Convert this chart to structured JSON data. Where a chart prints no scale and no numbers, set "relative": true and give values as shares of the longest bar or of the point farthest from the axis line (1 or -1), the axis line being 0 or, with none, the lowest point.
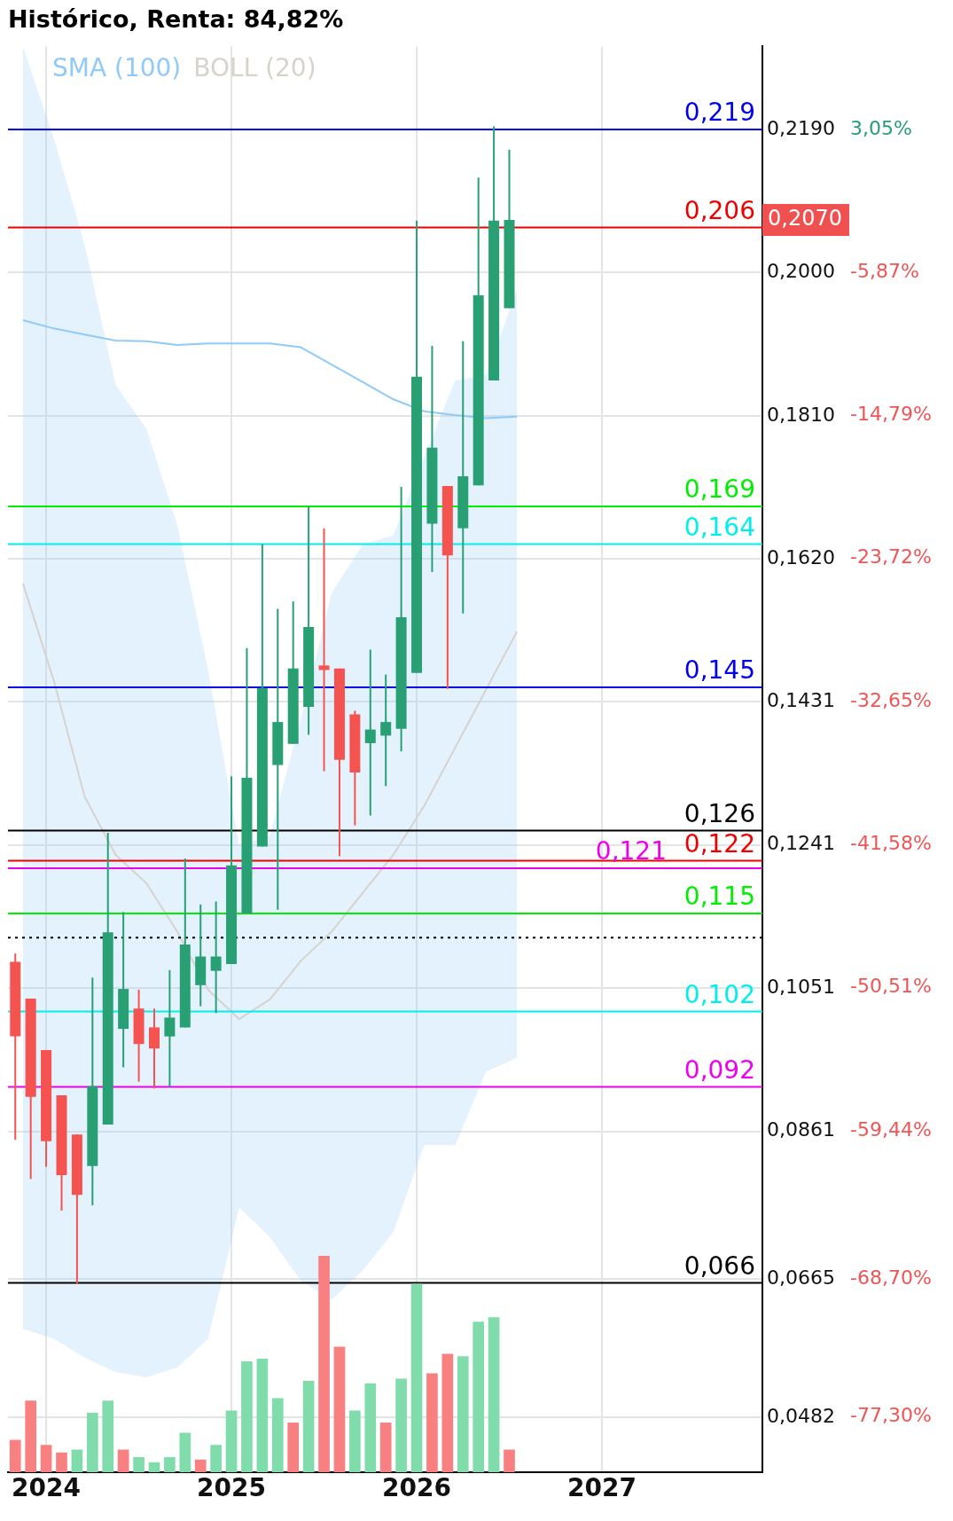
{
  "chart_data": [
    {
      "type": "candlestick",
      "title": "Histórico, Renta: 84,82%",
      "x": [
        "2023-11",
        "2023-12",
        "2024-01",
        "2024-02",
        "2024-03",
        "2024-04",
        "2024-05",
        "2024-06",
        "2024-07",
        "2024-08",
        "2024-09",
        "2024-10",
        "2024-11",
        "2024-12",
        "2025-01",
        "2025-02",
        "2025-03",
        "2025-04",
        "2025-05",
        "2025-06",
        "2025-07",
        "2025-08",
        "2025-09",
        "2025-10",
        "2025-11",
        "2025-12",
        "2026-01",
        "2026-02",
        "2026-03",
        "2026-04",
        "2026-05",
        "2026-06",
        "2026-07"
      ],
      "ohlc": [
        [
          0.1086,
          0.1097,
          0.085,
          0.0987
        ],
        [
          0.1037,
          0.1037,
          0.0798,
          0.0907
        ],
        [
          0.0969,
          0.0969,
          0.0814,
          0.0848
        ],
        [
          0.0909,
          0.0909,
          0.0756,
          0.0803
        ],
        [
          0.0857,
          0.0857,
          0.0659,
          0.0777
        ],
        [
          0.0815,
          0.1065,
          0.0763,
          0.0921
        ],
        [
          0.087,
          0.1257,
          0.087,
          0.1125
        ],
        [
          0.0997,
          0.1152,
          0.0946,
          0.105
        ],
        [
          0.1024,
          0.1049,
          0.0927,
          0.0977
        ],
        [
          0.0999,
          0.1024,
          0.0918,
          0.0971
        ],
        [
          0.0987,
          0.1075,
          0.092,
          0.1012
        ],
        [
          0.0999,
          0.1223,
          0.0999,
          0.1109
        ],
        [
          0.1055,
          0.1162,
          0.1027,
          0.1093
        ],
        [
          0.1074,
          0.1166,
          0.1018,
          0.1093
        ],
        [
          0.1083,
          0.1332,
          0.1083,
          0.1214
        ],
        [
          0.115,
          0.1502,
          0.115,
          0.133
        ],
        [
          0.1239,
          0.164,
          0.1239,
          0.1449
        ],
        [
          0.1347,
          0.1554,
          0.1155,
          0.1404
        ],
        [
          0.1375,
          0.1564,
          0.1375,
          0.1475
        ],
        [
          0.1424,
          0.169,
          0.1387,
          0.153
        ],
        [
          0.1479,
          0.1661,
          0.1339,
          0.1473
        ],
        [
          0.1475,
          0.1475,
          0.1226,
          0.1354
        ],
        [
          0.1414,
          0.1419,
          0.1267,
          0.1337
        ],
        [
          0.1376,
          0.15,
          0.128,
          0.1394
        ],
        [
          0.1386,
          0.1467,
          0.1319,
          0.1404
        ],
        [
          0.1395,
          0.1716,
          0.1365,
          0.1543
        ],
        [
          0.1469,
          0.2069,
          0.1469,
          0.1862
        ],
        [
          0.1667,
          0.1903,
          0.1603,
          0.1768
        ],
        [
          0.1717,
          0.1717,
          0.1448,
          0.1625
        ],
        [
          0.1661,
          0.1909,
          0.1548,
          0.173
        ],
        [
          0.1718,
          0.2126,
          0.1718,
          0.197
        ],
        [
          0.1857,
          0.2194,
          0.1857,
          0.2069
        ],
        [
          0.1953,
          0.2163,
          0.1953,
          0.207
        ]
      ],
      "colors": [
        "#f5534f",
        "#f5534f",
        "#f5534f",
        "#f5534f",
        "#f5534f",
        "#28a074",
        "#28a074",
        "#28a074",
        "#f5534f",
        "#f5534f",
        "#28a074",
        "#28a074",
        "#28a074",
        "#28a074",
        "#28a074",
        "#28a074",
        "#28a074",
        "#28a074",
        "#28a074",
        "#28a074",
        "#f5534f",
        "#f5534f",
        "#f5534f",
        "#28a074",
        "#28a074",
        "#28a074",
        "#28a074",
        "#28a074",
        "#f5534f",
        "#28a074",
        "#28a074",
        "#28a074",
        "#28a074"
      ],
      "series": [
        {
          "name": "SMA (100)",
          "type": "line",
          "color": "#90caf9",
          "x": [
            "2023-11-16",
            "2024-01-16",
            "2024-03-16",
            "2024-05-16",
            "2024-07-16",
            "2024-09-16",
            "2024-11-16",
            "2025-01-16",
            "2025-03-16",
            "2025-05-16",
            "2025-07-16",
            "2025-09-16",
            "2025-11-16",
            "2026-01-16",
            "2026-03-16",
            "2026-05-16",
            "2026-07-16"
          ],
          "values": [
            0.1937,
            0.1926,
            0.1918,
            0.191,
            0.1909,
            0.1904,
            0.1906,
            0.1906,
            0.1906,
            0.1901,
            0.1878,
            0.1855,
            0.1832,
            0.1816,
            0.1811,
            0.1807,
            0.1809
          ]
        },
        {
          "name": "BOLL (20)",
          "type": "line",
          "color": "#d8d2cc",
          "x": [
            "2023-11-16",
            "2024-01-16",
            "2024-03-16",
            "2024-05-16",
            "2024-07-16",
            "2024-09-16",
            "2024-11-16",
            "2025-01-16",
            "2025-03-16",
            "2025-05-16",
            "2025-07-16",
            "2025-09-16",
            "2025-11-16",
            "2026-01-16",
            "2026-03-16",
            "2026-05-16",
            "2026-07-16"
          ],
          "values": [
            0.1588,
            0.1459,
            0.1305,
            0.1228,
            0.119,
            0.1126,
            0.1049,
            0.101,
            0.1036,
            0.1087,
            0.1126,
            0.1177,
            0.1228,
            0.1293,
            0.137,
            0.1447,
            0.1524
          ],
          "upper": [
            0.23,
            0.2178,
            0.2037,
            0.1851,
            0.1793,
            0.1665,
            0.1472,
            0.1241,
            0.1254,
            0.1408,
            0.1575,
            0.1639,
            0.1652,
            0.1755,
            0.1857,
            0.1864,
            0.1977
          ],
          "lower": [
            0.0599,
            0.0586,
            0.0561,
            0.0542,
            0.0535,
            0.0548,
            0.0586,
            0.076,
            0.0721,
            0.0663,
            0.0638,
            0.0676,
            0.0728,
            0.0843,
            0.0843,
            0.094,
            0.0959
          ]
        }
      ],
      "xlim": [
        "2023-10-17",
        "2027-11-13"
      ],
      "xticks": [
        "2024",
        "2025",
        "2026",
        "2027"
      ],
      "ylim": [
        0.0409,
        0.23
      ],
      "yticks": [
        {
          "value": 0.219,
          "label": "0,2190"
        },
        {
          "value": 0.2,
          "label": "0,2000"
        },
        {
          "value": 0.181,
          "label": "0,1810"
        },
        {
          "value": 0.162,
          "label": "0,1620"
        },
        {
          "value": 0.1431,
          "label": "0,1431"
        },
        {
          "value": 0.1241,
          "label": "0,1241"
        },
        {
          "value": 0.1051,
          "label": "0,1051"
        },
        {
          "value": 0.0861,
          "label": "0,0861"
        },
        {
          "value": 0.0665,
          "label": "0,0665"
        },
        {
          "value": 0.0482,
          "label": "0,0482"
        }
      ],
      "y2lim": [
        -80.76,
        8.23
      ],
      "y2ticks": [
        {
          "value": 3.05,
          "label": "3,05%"
        },
        {
          "value": -5.87,
          "label": "-5,87%"
        },
        {
          "value": -14.79,
          "label": "-14,79%"
        },
        {
          "value": -23.72,
          "label": "-23,72%"
        },
        {
          "value": -32.65,
          "label": "-32,65%"
        },
        {
          "value": -41.58,
          "label": "-41,58%"
        },
        {
          "value": -50.51,
          "label": "-50,51%"
        },
        {
          "value": -59.44,
          "label": "-59,44%"
        },
        {
          "value": -68.7,
          "label": "-68,70%"
        },
        {
          "value": -77.3,
          "label": "-77,30%"
        }
      ],
      "ref_lines": [
        {
          "axis": "y",
          "value": 0.219,
          "label": "0,219",
          "color": "#0000ee"
        },
        {
          "axis": "y",
          "value": 0.206,
          "label": "0,206",
          "color": "#ee0000"
        },
        {
          "axis": "y",
          "value": 0.169,
          "label": "0,169",
          "color": "#00ee00"
        },
        {
          "axis": "y",
          "value": 0.164,
          "label": "0,164",
          "color": "#00eeee"
        },
        {
          "axis": "y",
          "value": 0.145,
          "label": "0,145",
          "color": "#0000ee"
        },
        {
          "axis": "y",
          "value": 0.126,
          "label": "0,126",
          "color": "#000000"
        },
        {
          "axis": "y",
          "value": 0.122,
          "label": "0,122",
          "color": "#ee0000"
        },
        {
          "axis": "y",
          "value": 0.121,
          "label": "0,121",
          "color": "#ee00ee"
        },
        {
          "axis": "y",
          "value": 0.115,
          "label": "0,115",
          "color": "#00ee00"
        },
        {
          "axis": "y",
          "value": 0.1118,
          "color": "#000000",
          "line_style": "dotted"
        },
        {
          "axis": "y",
          "value": 0.102,
          "label": "0,102",
          "color": "#00eeee"
        },
        {
          "axis": "y",
          "value": 0.092,
          "label": "0,092",
          "color": "#ee00ee"
        },
        {
          "axis": "y",
          "value": 0.066,
          "label": "0,066",
          "color": "#000000"
        }
      ],
      "annotations": [
        "0,2070"
      ],
      "grid": true,
      "legend": "top left",
      "marker": "none"
    },
    {
      "type": "bar",
      "relative": true,
      "categories": [
        null,
        null,
        null,
        null,
        null,
        null,
        null,
        null,
        null,
        null,
        null,
        null,
        null,
        null,
        null,
        null,
        null,
        null,
        null,
        null,
        null,
        null,
        null,
        null,
        null,
        null,
        null,
        null,
        null,
        null,
        null,
        null,
        null
      ],
      "values": [
        0.148,
        0.33,
        0.125,
        0.09,
        0.103,
        0.273,
        0.33,
        0.103,
        0.068,
        0.045,
        0.068,
        0.181,
        0.057,
        0.125,
        0.283,
        0.511,
        0.523,
        0.341,
        0.228,
        0.421,
        1,
        0.579,
        0.283,
        0.409,
        0.228,
        0.431,
        0.87,
        0.456,
        0.546,
        0.534,
        0.694,
        0.715,
        0.103
      ],
      "colors": [
        "#f88080",
        "#f88080",
        "#f88080",
        "#f88080",
        "#80dcaa",
        "#80dcaa",
        "#80dcaa",
        "#f88080",
        "#80dcaa",
        "#80dcaa",
        "#80dcaa",
        "#80dcaa",
        "#f88080",
        "#80dcaa",
        "#80dcaa",
        "#80dcaa",
        "#80dcaa",
        "#80dcaa",
        "#f88080",
        "#80dcaa",
        "#f88080",
        "#f88080",
        "#80dcaa",
        "#80dcaa",
        "#f88080",
        "#80dcaa",
        "#80dcaa",
        "#f88080",
        "#f88080",
        "#80dcaa",
        "#80dcaa",
        "#80dcaa",
        "#f88080"
      ]
    }
  ]
}
